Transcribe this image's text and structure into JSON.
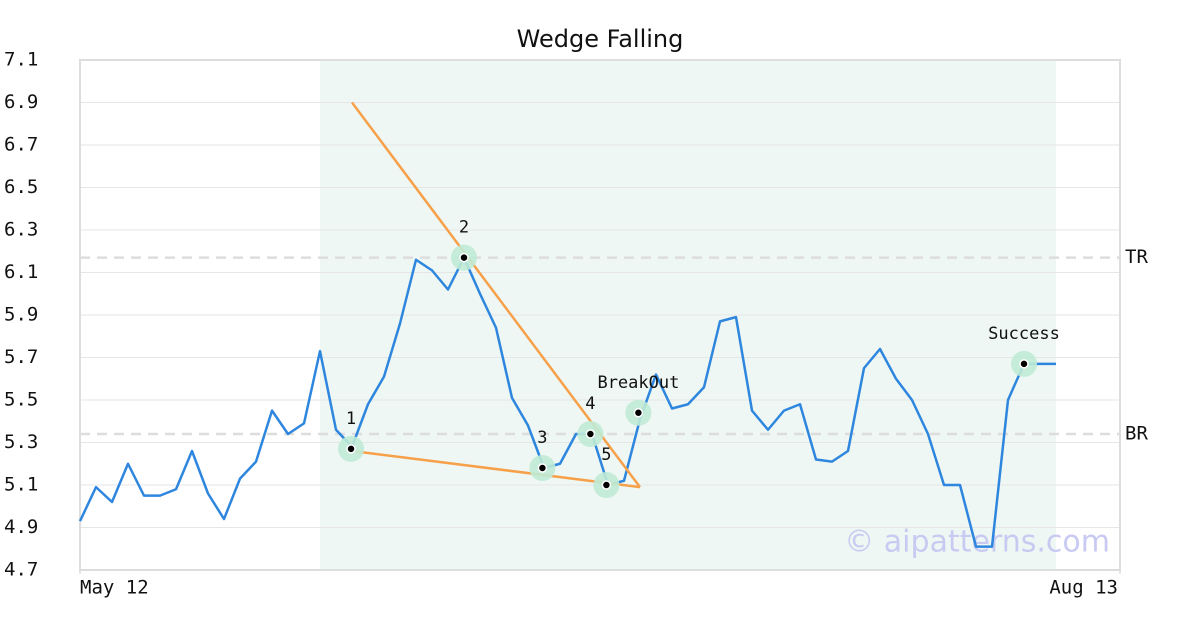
{
  "chart_data": {
    "type": "line",
    "title": "Wedge Falling",
    "x": [
      0,
      1,
      2,
      3,
      4,
      5,
      6,
      7,
      8,
      9,
      10,
      11,
      12,
      13,
      14,
      15,
      16,
      17,
      18,
      19,
      20,
      21,
      22,
      23,
      24,
      25,
      26,
      27,
      28,
      29,
      30,
      31,
      32,
      33,
      34,
      35,
      36,
      37,
      38,
      39,
      40,
      41,
      42,
      43,
      44,
      45,
      46,
      47,
      48,
      49,
      50,
      51,
      52,
      53,
      54,
      55,
      56,
      57,
      58,
      59,
      60,
      61
    ],
    "series": [
      {
        "color": "#2e86de",
        "values": [
          4.93,
          5.09,
          5.02,
          5.2,
          5.05,
          5.05,
          5.08,
          5.26,
          5.06,
          4.94,
          5.13,
          5.21,
          5.45,
          5.34,
          5.39,
          5.73,
          5.36,
          5.28,
          5.48,
          5.61,
          5.86,
          6.16,
          6.11,
          6.02,
          6.17,
          6.0,
          5.84,
          5.51,
          5.38,
          5.18,
          5.2,
          5.34,
          5.34,
          5.1,
          5.12,
          5.41,
          5.62,
          5.46,
          5.48,
          5.56,
          5.87,
          5.89,
          5.45,
          5.36,
          5.45,
          5.48,
          5.22,
          5.21,
          5.26,
          5.65,
          5.74,
          5.6,
          5.5,
          5.34,
          5.1,
          5.1,
          4.81,
          4.81,
          5.5,
          5.67,
          5.67,
          5.67
        ]
      }
    ],
    "xlim": [
      0,
      65
    ],
    "xticks": [
      {
        "value": 0,
        "label": "May 12"
      },
      {
        "value": 65,
        "label": "Aug 13"
      }
    ],
    "ylim": [
      4.7,
      7.1
    ],
    "yticks": [
      4.7,
      4.9,
      5.1,
      5.3,
      5.5,
      5.7,
      5.9,
      6.1,
      6.3,
      6.5,
      6.7,
      6.9,
      7.1
    ],
    "grid": true,
    "shaded_region": {
      "x": [
        15,
        61
      ],
      "color": "#eef7f3"
    },
    "levels": [
      {
        "label": "TR",
        "value": 6.17
      },
      {
        "label": "BR",
        "value": 5.34
      }
    ],
    "wedge_lines": [
      {
        "color": "#f7a04a",
        "x": [
          17,
          35
        ],
        "y": [
          6.9,
          5.09
        ]
      },
      {
        "color": "#f7a04a",
        "x": [
          17,
          35
        ],
        "y": [
          5.26,
          5.09
        ]
      }
    ],
    "points": [
      {
        "label": "1",
        "x": 16.94,
        "y": 5.27
      },
      {
        "label": "2",
        "x": 24,
        "y": 6.17
      },
      {
        "label": "3",
        "x": 28.9,
        "y": 5.18
      },
      {
        "label": "4",
        "x": 31.9,
        "y": 5.34
      },
      {
        "label": "5",
        "x": 32.9,
        "y": 5.1
      },
      {
        "label": "BreakOut",
        "x": 34.9,
        "y": 5.44
      },
      {
        "label": "Success",
        "x": 59,
        "y": 5.67
      }
    ],
    "point_color": "#bfead5",
    "watermark": "© aipatterns.com"
  }
}
